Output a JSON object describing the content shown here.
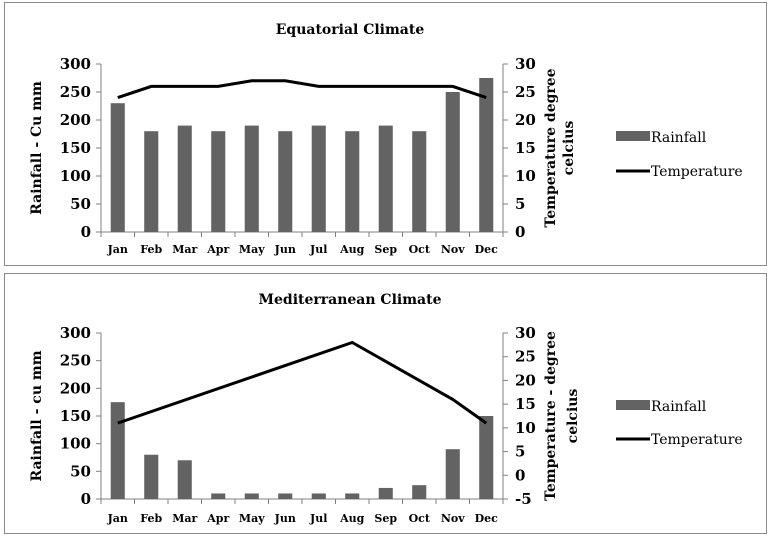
{
  "charts": [
    {
      "type": "bar",
      "title": "Equatorial Climate",
      "categories": [
        "Jan",
        "Feb",
        "Mar",
        "Apr",
        "May",
        "Jun",
        "Jul",
        "Aug",
        "Sep",
        "Oct",
        "Nov",
        "Dec"
      ],
      "series": [
        {
          "name": "Rainfall",
          "type": "bar",
          "axis": "left",
          "color": "#636363",
          "values": [
            230,
            180,
            190,
            180,
            190,
            180,
            190,
            180,
            190,
            180,
            250,
            275
          ]
        },
        {
          "name": "Temperature",
          "type": "line",
          "axis": "right",
          "color": "#000000",
          "values": [
            24,
            26,
            26,
            26,
            27,
            27,
            26,
            26,
            26,
            26,
            26,
            24
          ]
        }
      ],
      "ylabel": "Rainfall - Cu mm",
      "ylabel_right_lines": [
        "Temperature degree",
        "celcius"
      ],
      "ylim": [
        0,
        300
      ],
      "ystep": 50,
      "ylim_right": [
        0,
        30
      ],
      "ystep_right": 5,
      "legend_position": "right"
    },
    {
      "type": "bar",
      "title": "Mediterranean Climate",
      "categories": [
        "Jan",
        "Feb",
        "Mar",
        "Apr",
        "May",
        "Jun",
        "Jul",
        "Aug",
        "Sep",
        "Oct",
        "Nov",
        "Dec"
      ],
      "series": [
        {
          "name": "Rainfall",
          "type": "bar",
          "axis": "left",
          "color": "#636363",
          "values": [
            175,
            80,
            70,
            10,
            10,
            10,
            10,
            10,
            20,
            25,
            90,
            150
          ]
        },
        {
          "name": "Temperature",
          "type": "line",
          "axis": "right",
          "color": "#000000",
          "values": [
            11,
            null,
            null,
            null,
            null,
            null,
            null,
            28,
            null,
            null,
            16,
            11
          ]
        }
      ],
      "ylabel": "Rainfall - cu mm",
      "ylabel_right_lines": [
        "Temperature - degree",
        "celcius"
      ],
      "ylim": [
        0,
        300
      ],
      "ystep": 50,
      "ylim_right": [
        -5,
        30
      ],
      "ystep_right": 5,
      "legend_position": "right"
    }
  ]
}
